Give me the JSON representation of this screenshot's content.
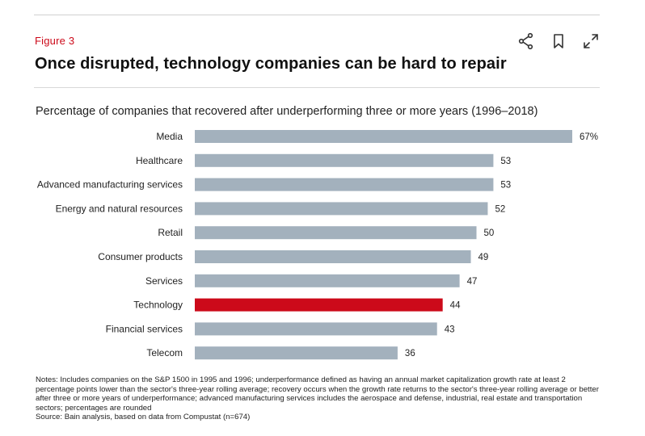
{
  "figure": {
    "label": "Figure 3",
    "title": "Once disrupted, technology companies can be hard to repair"
  },
  "toolbar": {
    "share_icon": "share-icon",
    "bookmark_icon": "bookmark-icon",
    "expand_icon": "expand-icon"
  },
  "colors": {
    "bar_default": "#a3b1bd",
    "bar_highlight": "#cc0a1a",
    "accent": "#cc0a1a"
  },
  "chart_data": {
    "type": "bar",
    "orientation": "horizontal",
    "title": "Percentage of companies that recovered after underperforming three or more years (1996–2018)",
    "categories": [
      "Media",
      "Healthcare",
      "Advanced manufacturing services",
      "Energy and natural resources",
      "Retail",
      "Consumer products",
      "Services",
      "Technology",
      "Financial services",
      "Telecom"
    ],
    "values": [
      67,
      53,
      53,
      52,
      50,
      49,
      47,
      44,
      43,
      36
    ],
    "data_labels": [
      "67%",
      "53",
      "53",
      "52",
      "50",
      "49",
      "47",
      "44",
      "43",
      "36"
    ],
    "highlight": "Technology",
    "xlim": [
      0,
      67
    ],
    "grid": false,
    "legend": "none"
  },
  "notes": {
    "text": "Notes: Includes companies on the S&P 1500 in 1995 and 1996; underperformance defined as having an annual market capitalization growth rate at least 2 percentage points lower than the sector's three-year rolling average; recovery occurs when the growth rate returns to the sector's three-year rolling average or better after three or more years of underperformance; advanced manufacturing services includes the aerospace and defense, industrial, real estate and transportation sectors; percentages are rounded",
    "source": "Source: Bain analysis, based on data from Compustat (n=674)"
  }
}
